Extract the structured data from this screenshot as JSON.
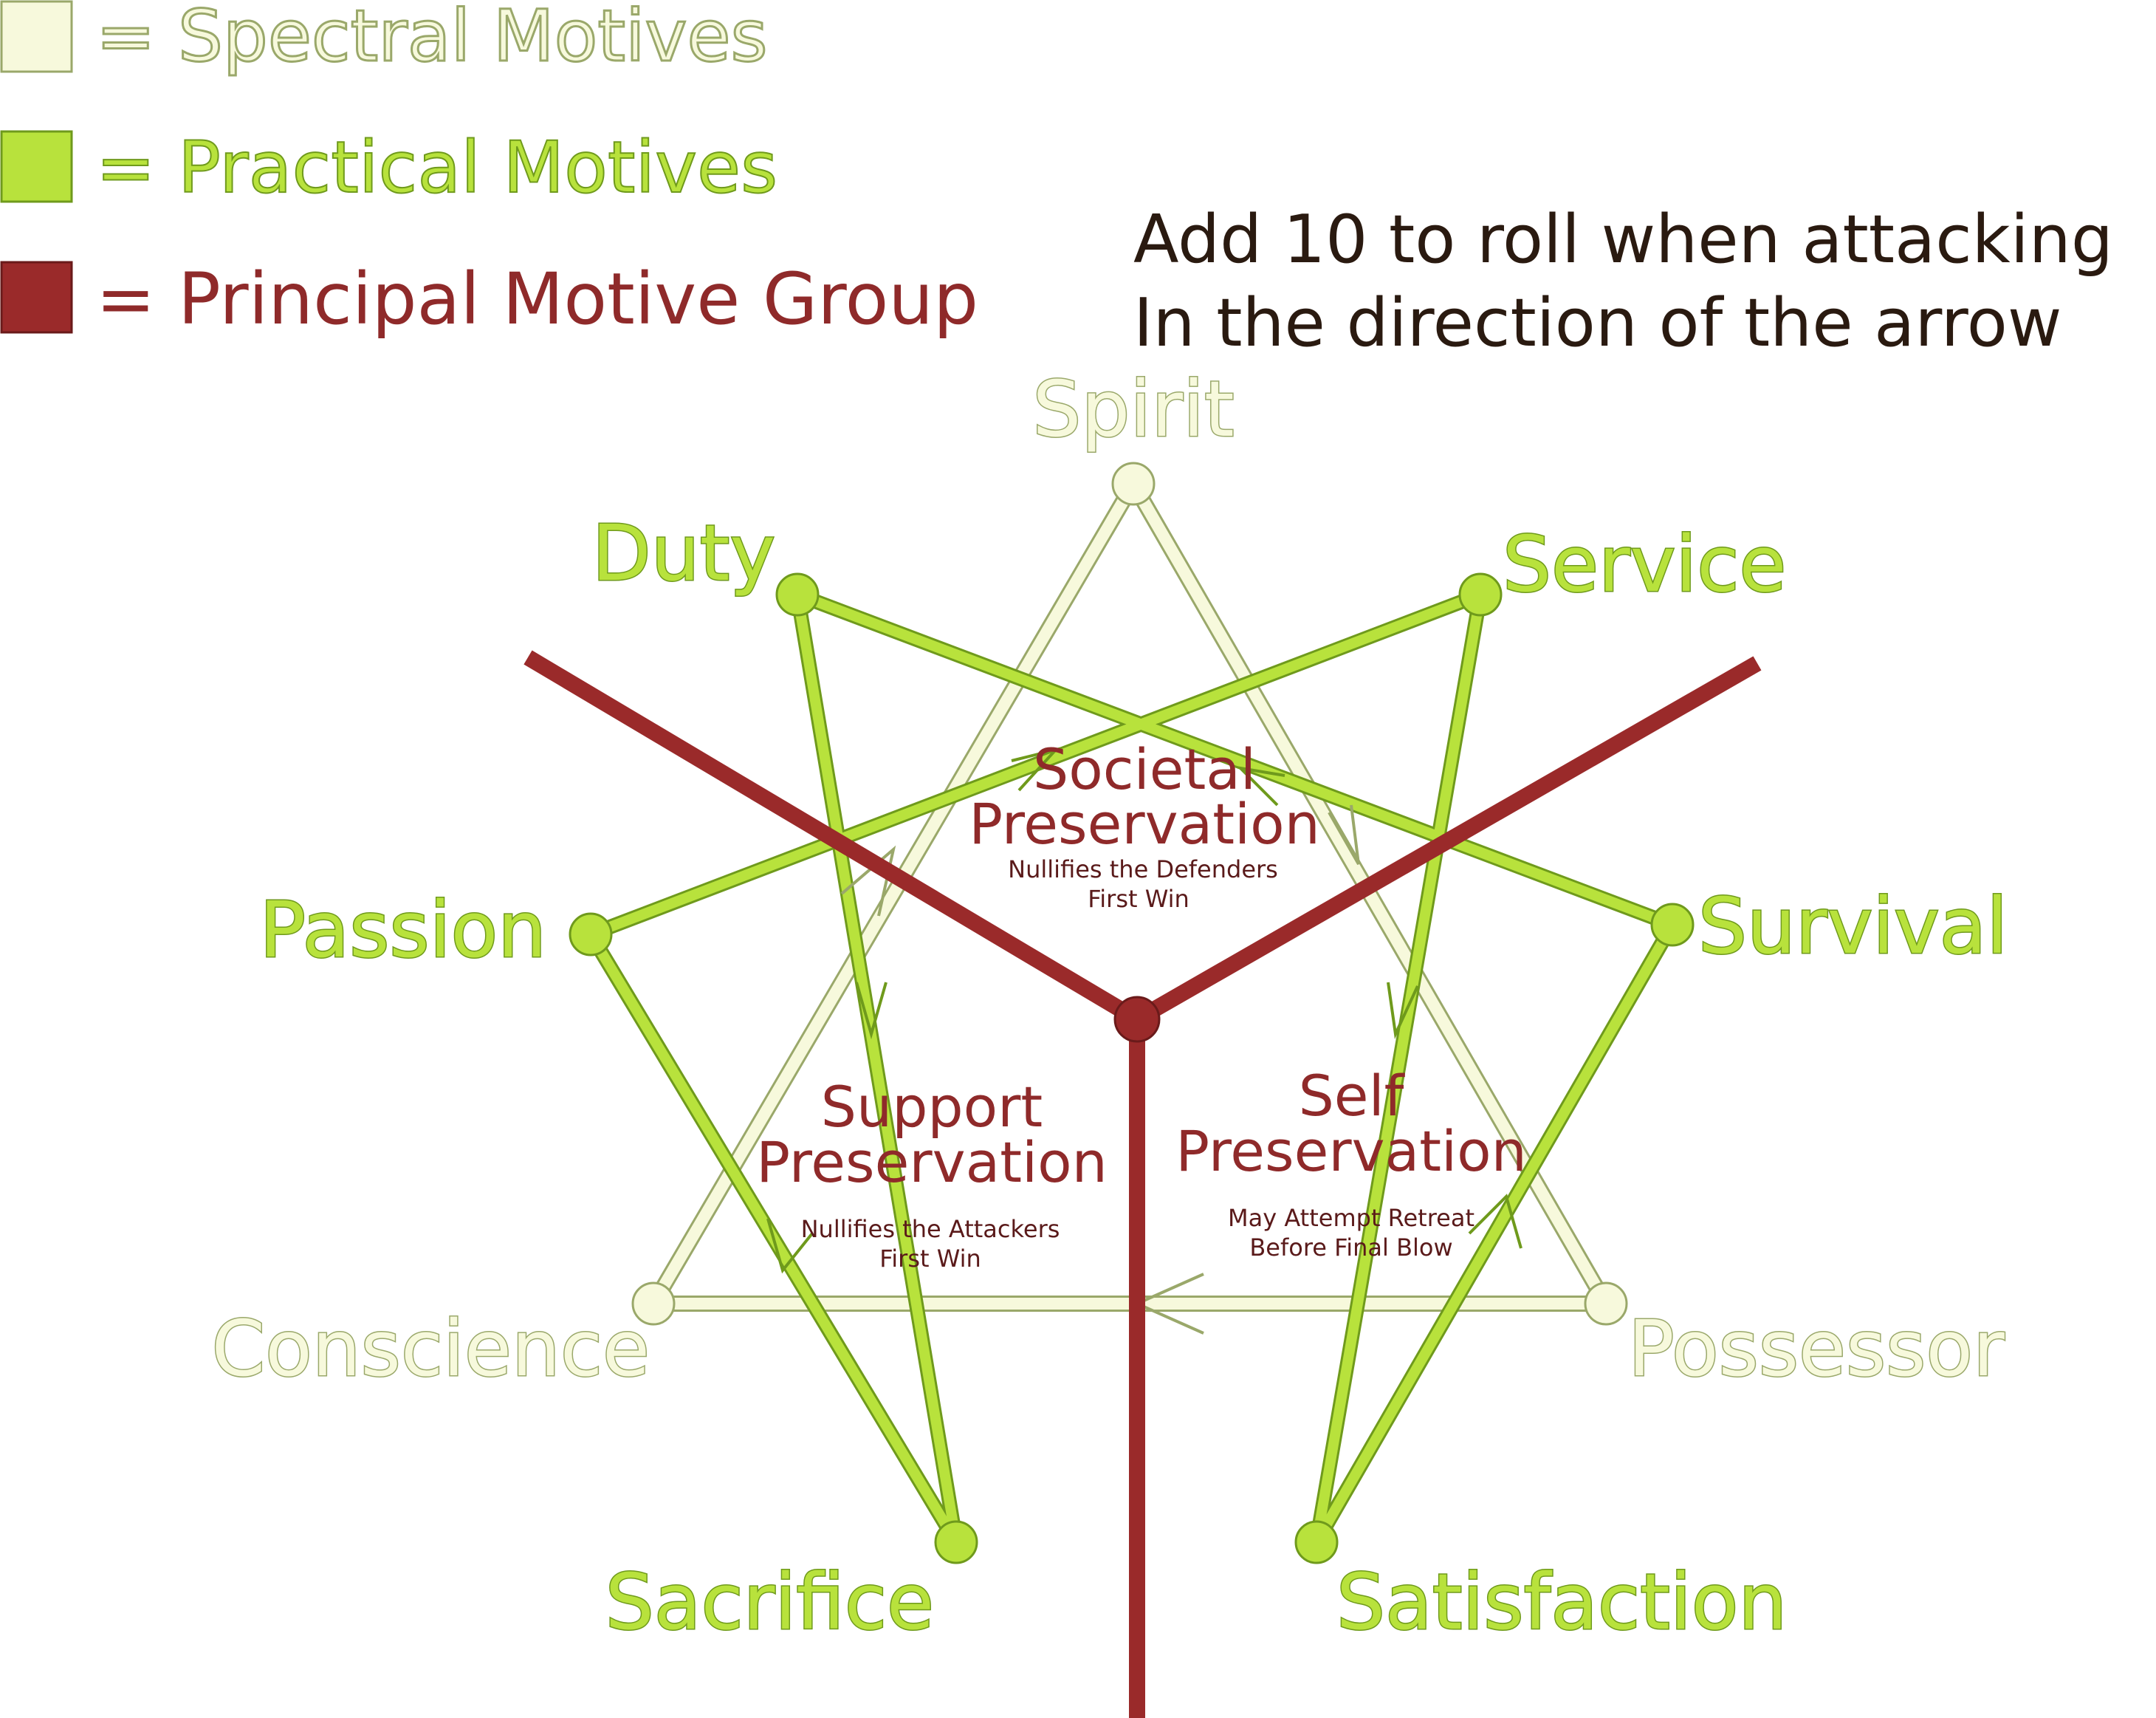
{
  "legend": [
    {
      "label": "= Spectral Motives",
      "color": "#f7f9dc",
      "stroke": "#9aa86a"
    },
    {
      "label": "= Practical Motives",
      "color": "#b8e23c",
      "stroke": "#6f9a1c"
    },
    {
      "label": "= Principal Motive Group",
      "color": "#9a2a2a",
      "stroke": "#6a1a1a"
    }
  ],
  "note": {
    "line1": "Add 10 to roll when attacking",
    "line2": "In the direction of the arrow"
  },
  "nodes": {
    "spirit": "Spirit",
    "conscience": "Conscience",
    "possessor": "Possessor",
    "duty": "Duty",
    "service": "Service",
    "passion": "Passion",
    "survival": "Survival",
    "sacrifice": "Sacrifice",
    "satisfaction": "Satisfaction"
  },
  "groups": {
    "societal": {
      "title_line1": "Societal",
      "title_line2": "Preservation",
      "sub_line1": "Nullifies the Defenders",
      "sub_line2": "First Win"
    },
    "support": {
      "title_line1": "Support",
      "title_line2": "Preservation",
      "sub_line1": "Nullifies the Attackers",
      "sub_line2": "First Win"
    },
    "self": {
      "title_line1": "Self",
      "title_line2": "Preservation",
      "sub_line1": "May Attempt Retreat",
      "sub_line2": "Before Final Blow"
    }
  },
  "colors": {
    "spectral": "#f7f9dc",
    "practical": "#b8e23c",
    "principal": "#9a2a2a"
  }
}
